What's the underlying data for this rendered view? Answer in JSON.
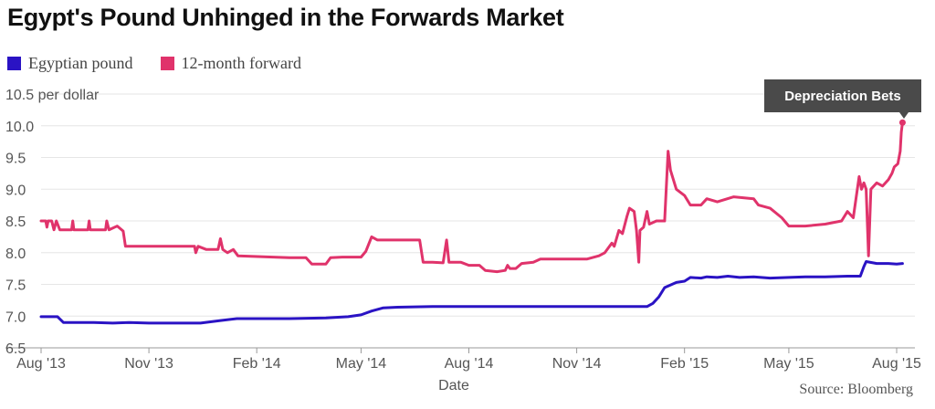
{
  "header": {
    "title": "Egypt's Pound Unhinged in the Forwards Market"
  },
  "source": "Source: Bloomberg",
  "colors": {
    "spot": "#2a13c4",
    "forward": "#e0336b",
    "grid": "#e6e6e6",
    "callout_bg": "#4a4a4a"
  },
  "chart_data": {
    "type": "line",
    "title": "Egypt's Pound Unhinged in the Forwards Market",
    "xlabel": "Date",
    "ylabel": "per dollar",
    "x_tick_labels": [
      "Aug '13",
      "Nov '13",
      "Feb '14",
      "May '14",
      "Aug '14",
      "Nov '14",
      "Feb '15",
      "May '15",
      "Aug '15"
    ],
    "x_ticks": [
      "2013-08-01",
      "2013-11-01",
      "2014-02-01",
      "2014-05-01",
      "2014-08-01",
      "2014-11-01",
      "2015-02-01",
      "2015-05-01",
      "2015-08-01"
    ],
    "xlim": [
      "2013-08-01",
      "2015-08-08"
    ],
    "ylim": [
      6.5,
      10.5
    ],
    "y_ticks": [
      6.5,
      7.0,
      7.5,
      8.0,
      8.5,
      9.0,
      9.5,
      10.0,
      10.5
    ],
    "y_tick_labels": [
      "6.5",
      "7.0",
      "7.5",
      "8.0",
      "8.5",
      "9.0",
      "9.5",
      "10.0",
      "10.5 per dollar"
    ],
    "grid": true,
    "legend_position": "top-left",
    "annotation": {
      "text": "Depreciation Bets",
      "x": "2015-08-06",
      "y": 10.05,
      "series": "12-month forward"
    },
    "series": [
      {
        "name": "Egyptian pound",
        "color": "#2a13c4",
        "points": [
          [
            "2013-08-01",
            6.99
          ],
          [
            "2013-08-15",
            6.99
          ],
          [
            "2013-08-20",
            6.9
          ],
          [
            "2013-09-15",
            6.9
          ],
          [
            "2013-10-01",
            6.89
          ],
          [
            "2013-10-15",
            6.9
          ],
          [
            "2013-11-01",
            6.89
          ],
          [
            "2013-12-15",
            6.89
          ],
          [
            "2014-01-01",
            6.93
          ],
          [
            "2014-01-15",
            6.96
          ],
          [
            "2014-02-01",
            6.96
          ],
          [
            "2014-03-01",
            6.96
          ],
          [
            "2014-04-01",
            6.97
          ],
          [
            "2014-04-20",
            6.99
          ],
          [
            "2014-05-01",
            7.02
          ],
          [
            "2014-05-10",
            7.08
          ],
          [
            "2014-05-20",
            7.13
          ],
          [
            "2014-06-01",
            7.14
          ],
          [
            "2014-07-01",
            7.15
          ],
          [
            "2014-08-01",
            7.15
          ],
          [
            "2014-09-01",
            7.15
          ],
          [
            "2014-10-01",
            7.15
          ],
          [
            "2014-11-01",
            7.15
          ],
          [
            "2014-12-01",
            7.15
          ],
          [
            "2014-12-31",
            7.15
          ],
          [
            "2015-01-05",
            7.2
          ],
          [
            "2015-01-10",
            7.3
          ],
          [
            "2015-01-15",
            7.45
          ],
          [
            "2015-01-25",
            7.53
          ],
          [
            "2015-02-01",
            7.55
          ],
          [
            "2015-02-06",
            7.61
          ],
          [
            "2015-02-15",
            7.6
          ],
          [
            "2015-02-20",
            7.62
          ],
          [
            "2015-03-01",
            7.61
          ],
          [
            "2015-03-10",
            7.63
          ],
          [
            "2015-03-20",
            7.61
          ],
          [
            "2015-04-01",
            7.62
          ],
          [
            "2015-04-15",
            7.6
          ],
          [
            "2015-05-01",
            7.61
          ],
          [
            "2015-05-15",
            7.62
          ],
          [
            "2015-06-01",
            7.62
          ],
          [
            "2015-06-20",
            7.63
          ],
          [
            "2015-07-01",
            7.63
          ],
          [
            "2015-07-04",
            7.78
          ],
          [
            "2015-07-06",
            7.86
          ],
          [
            "2015-07-15",
            7.83
          ],
          [
            "2015-07-25",
            7.83
          ],
          [
            "2015-08-01",
            7.82
          ],
          [
            "2015-08-06",
            7.83
          ]
        ]
      },
      {
        "name": "12-month forward",
        "color": "#e0336b",
        "points": [
          [
            "2013-08-01",
            8.5
          ],
          [
            "2013-08-05",
            8.5
          ],
          [
            "2013-08-06",
            8.4
          ],
          [
            "2013-08-07",
            8.5
          ],
          [
            "2013-08-10",
            8.5
          ],
          [
            "2013-08-12",
            8.36
          ],
          [
            "2013-08-14",
            8.5
          ],
          [
            "2013-08-17",
            8.36
          ],
          [
            "2013-08-20",
            8.36
          ],
          [
            "2013-08-27",
            8.36
          ],
          [
            "2013-08-28",
            8.5
          ],
          [
            "2013-08-29",
            8.36
          ],
          [
            "2013-09-10",
            8.36
          ],
          [
            "2013-09-11",
            8.5
          ],
          [
            "2013-09-12",
            8.36
          ],
          [
            "2013-09-25",
            8.36
          ],
          [
            "2013-09-26",
            8.5
          ],
          [
            "2013-09-28",
            8.36
          ],
          [
            "2013-10-05",
            8.42
          ],
          [
            "2013-10-10",
            8.34
          ],
          [
            "2013-10-12",
            8.1
          ],
          [
            "2013-11-01",
            8.1
          ],
          [
            "2013-12-01",
            8.1
          ],
          [
            "2013-12-10",
            8.1
          ],
          [
            "2013-12-11",
            8.0
          ],
          [
            "2013-12-13",
            8.1
          ],
          [
            "2013-12-20",
            8.05
          ],
          [
            "2013-12-30",
            8.05
          ],
          [
            "2014-01-01",
            8.22
          ],
          [
            "2014-01-03",
            8.05
          ],
          [
            "2014-01-07",
            8.0
          ],
          [
            "2014-01-12",
            8.05
          ],
          [
            "2014-01-16",
            7.95
          ],
          [
            "2014-02-15",
            7.93
          ],
          [
            "2014-03-01",
            7.92
          ],
          [
            "2014-03-15",
            7.92
          ],
          [
            "2014-03-20",
            7.82
          ],
          [
            "2014-04-01",
            7.82
          ],
          [
            "2014-04-05",
            7.92
          ],
          [
            "2014-04-15",
            7.93
          ],
          [
            "2014-05-01",
            7.93
          ],
          [
            "2014-05-05",
            8.02
          ],
          [
            "2014-05-10",
            8.25
          ],
          [
            "2014-05-15",
            8.2
          ],
          [
            "2014-06-01",
            8.2
          ],
          [
            "2014-06-20",
            8.2
          ],
          [
            "2014-06-23",
            7.85
          ],
          [
            "2014-07-01",
            7.85
          ],
          [
            "2014-07-10",
            7.84
          ],
          [
            "2014-07-13",
            8.2
          ],
          [
            "2014-07-15",
            7.85
          ],
          [
            "2014-07-25",
            7.85
          ],
          [
            "2014-08-01",
            7.8
          ],
          [
            "2014-08-10",
            7.8
          ],
          [
            "2014-08-15",
            7.72
          ],
          [
            "2014-08-25",
            7.7
          ],
          [
            "2014-09-01",
            7.72
          ],
          [
            "2014-09-03",
            7.8
          ],
          [
            "2014-09-05",
            7.75
          ],
          [
            "2014-09-10",
            7.75
          ],
          [
            "2014-09-15",
            7.83
          ],
          [
            "2014-09-25",
            7.85
          ],
          [
            "2014-10-01",
            7.9
          ],
          [
            "2014-10-15",
            7.9
          ],
          [
            "2014-11-01",
            7.9
          ],
          [
            "2014-11-10",
            7.9
          ],
          [
            "2014-11-20",
            7.95
          ],
          [
            "2014-11-25",
            8.0
          ],
          [
            "2014-12-01",
            8.15
          ],
          [
            "2014-12-03",
            8.1
          ],
          [
            "2014-12-07",
            8.35
          ],
          [
            "2014-12-10",
            8.3
          ],
          [
            "2014-12-14",
            8.58
          ],
          [
            "2014-12-16",
            8.7
          ],
          [
            "2014-12-20",
            8.65
          ],
          [
            "2014-12-22",
            8.35
          ],
          [
            "2014-12-24",
            7.85
          ],
          [
            "2014-12-25",
            8.35
          ],
          [
            "2014-12-28",
            8.4
          ],
          [
            "2014-12-31",
            8.65
          ],
          [
            "2015-01-02",
            8.45
          ],
          [
            "2015-01-08",
            8.5
          ],
          [
            "2015-01-15",
            8.5
          ],
          [
            "2015-01-18",
            9.6
          ],
          [
            "2015-01-20",
            9.3
          ],
          [
            "2015-01-25",
            9.0
          ],
          [
            "2015-02-01",
            8.9
          ],
          [
            "2015-02-06",
            8.75
          ],
          [
            "2015-02-15",
            8.75
          ],
          [
            "2015-02-20",
            8.85
          ],
          [
            "2015-03-01",
            8.8
          ],
          [
            "2015-03-15",
            8.88
          ],
          [
            "2015-04-01",
            8.85
          ],
          [
            "2015-04-05",
            8.75
          ],
          [
            "2015-04-15",
            8.7
          ],
          [
            "2015-04-25",
            8.55
          ],
          [
            "2015-05-01",
            8.42
          ],
          [
            "2015-05-15",
            8.42
          ],
          [
            "2015-06-01",
            8.45
          ],
          [
            "2015-06-15",
            8.5
          ],
          [
            "2015-06-20",
            8.65
          ],
          [
            "2015-06-25",
            8.55
          ],
          [
            "2015-06-30",
            9.2
          ],
          [
            "2015-07-02",
            9.0
          ],
          [
            "2015-07-04",
            9.1
          ],
          [
            "2015-07-06",
            9.0
          ],
          [
            "2015-07-08",
            7.95
          ],
          [
            "2015-07-10",
            9.0
          ],
          [
            "2015-07-15",
            9.1
          ],
          [
            "2015-07-20",
            9.05
          ],
          [
            "2015-07-25",
            9.15
          ],
          [
            "2015-07-28",
            9.25
          ],
          [
            "2015-07-30",
            9.35
          ],
          [
            "2015-08-02",
            9.4
          ],
          [
            "2015-08-04",
            9.6
          ],
          [
            "2015-08-05",
            9.9
          ],
          [
            "2015-08-06",
            10.05
          ]
        ]
      }
    ]
  }
}
